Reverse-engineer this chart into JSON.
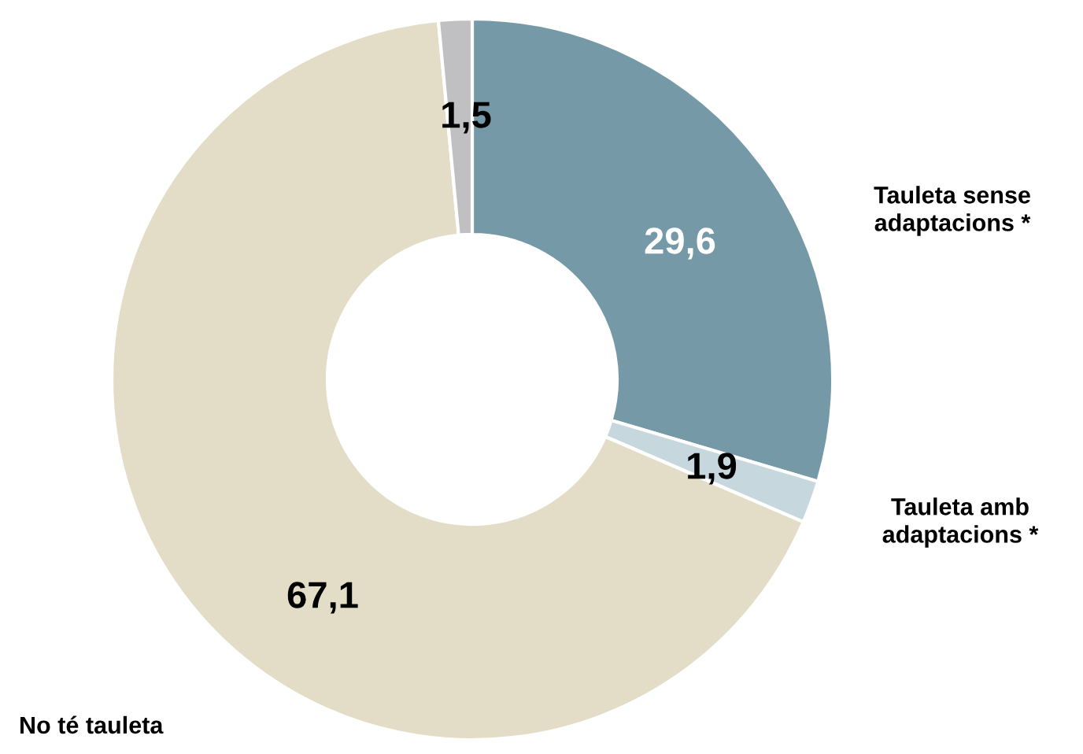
{
  "chart_data": {
    "type": "donut",
    "categories": [
      "Tauleta sense adaptacions *",
      "Tauleta amb adaptacions *",
      "No té tauleta",
      null
    ],
    "values": [
      29.6,
      1.9,
      67.1,
      1.5
    ],
    "colors": [
      "#7599a6",
      "#c6d8de",
      "#e3dcc6",
      "#c0c0c2"
    ],
    "value_labels": [
      "29,6",
      "1,9",
      "67,1",
      "1,5"
    ],
    "legend": false
  }
}
